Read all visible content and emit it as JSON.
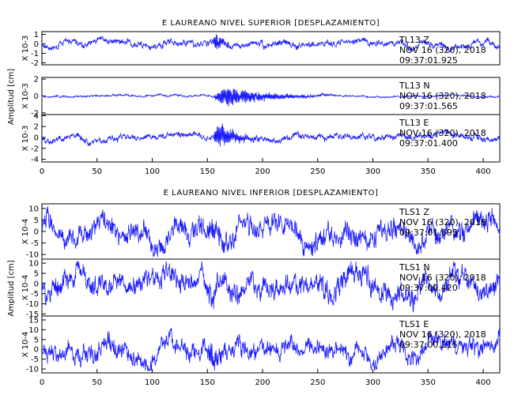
{
  "charts": [
    {
      "type": "line",
      "title": "E LAUREANO NIVEL SUPERIOR [DESPLAZAMIENTO]",
      "ylabel": "Amplitud [cm]",
      "xlim": [
        0,
        415
      ],
      "x_ticks": [
        0,
        50,
        100,
        150,
        200,
        250,
        300,
        350,
        400
      ],
      "panels": [
        {
          "scale_label": "X 10-3",
          "ylim": [
            -2.2,
            1.3
          ],
          "y_ticks": [
            1,
            0,
            -1,
            -2
          ],
          "station": "TL13   Z",
          "date": "NOV 16 (320), 2018",
          "time": "09:37:01.925",
          "base_amp": 0.35,
          "burst_amp": 1.6,
          "burst_start": 155,
          "burst_end": 175,
          "seed": 11
        },
        {
          "scale_label": "X 10-3",
          "ylim": [
            -2.2,
            2.2
          ],
          "y_ticks": [
            2,
            0,
            -2
          ],
          "station": "TL13   N",
          "date": "NOV 16 (320), 2018",
          "time": "09:37:01.565",
          "base_amp": 0.12,
          "burst_amp": 1.9,
          "burst_start": 155,
          "burst_end": 265,
          "seed": 23
        },
        {
          "scale_label": "X 10-3",
          "ylim": [
            -4.5,
            4.2
          ],
          "y_ticks": [
            4,
            2,
            0,
            -2,
            -4
          ],
          "station": "TL13   E",
          "date": "NOV 16 (320), 2018",
          "time": "09:37:01.400",
          "base_amp": 0.6,
          "burst_amp": 3.8,
          "burst_start": 155,
          "burst_end": 205,
          "seed": 37
        }
      ]
    },
    {
      "type": "line",
      "title": "E LAUREANO NIVEL INFERIOR [DESPLAZAMIENTO]",
      "ylabel": "Amplitud [cm]",
      "xlim": [
        0,
        415
      ],
      "x_ticks": [
        0,
        50,
        100,
        150,
        200,
        250,
        300,
        350,
        400
      ],
      "panels": [
        {
          "scale_label": "X 10-4",
          "ylim": [
            -12,
            12
          ],
          "y_ticks": [
            10,
            5,
            0,
            -5,
            -10
          ],
          "station": "TLS1   Z",
          "date": "NOV 16 (320), 2018",
          "time": "09:37:01.695",
          "base_amp": 5,
          "burst_amp": 5,
          "burst_start": 150,
          "burst_end": 175,
          "seed": 41
        },
        {
          "scale_label": "X 10-4",
          "ylim": [
            -16,
            12
          ],
          "y_ticks": [
            10,
            5,
            0,
            -5,
            -10,
            -15
          ],
          "station": "TLS1   N",
          "date": "NOV 16 (320), 2018",
          "time": "09:37:00.420",
          "base_amp": 6,
          "burst_amp": 6,
          "burst_start": 150,
          "burst_end": 175,
          "seed": 53
        },
        {
          "scale_label": "X 10-4",
          "ylim": [
            -12,
            17
          ],
          "y_ticks": [
            15,
            10,
            5,
            0,
            -5,
            -10
          ],
          "station": "TLS1   E",
          "date": "NOV 16 (320), 2018",
          "time": "09:37:00.215",
          "base_amp": 5,
          "burst_amp": 6,
          "burst_start": 150,
          "burst_end": 175,
          "seed": 67
        }
      ]
    }
  ]
}
